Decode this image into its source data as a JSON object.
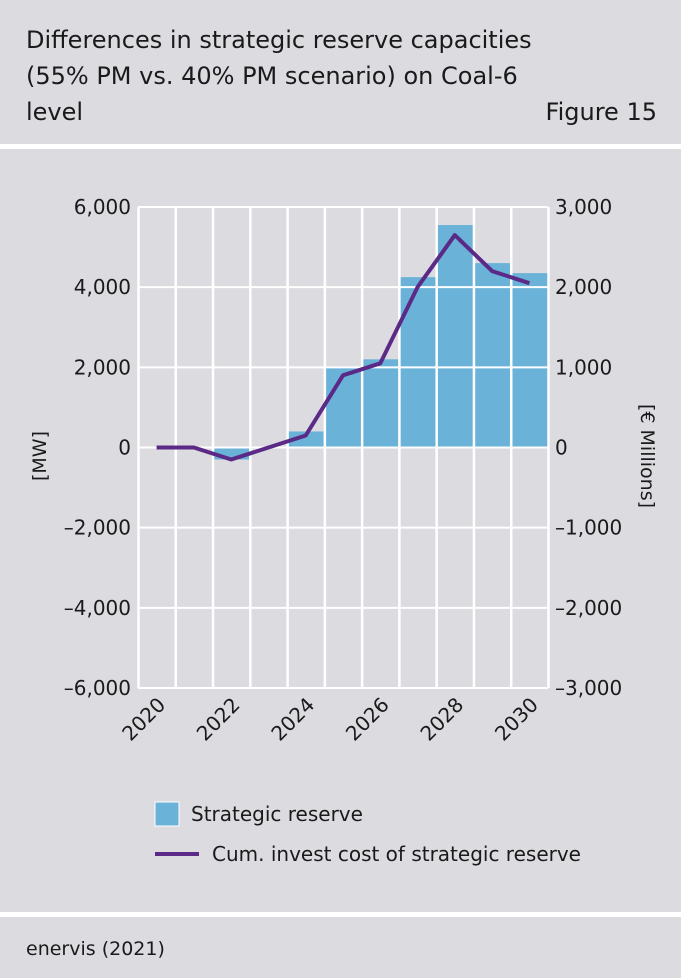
{
  "header": {
    "title": "Differences in strategic reserve capacities (55% PM vs. 40% PM scenario) on Coal-6 level",
    "figure_label": "Figure 15"
  },
  "footer": {
    "source": "enervis (2021)"
  },
  "colors": {
    "background": "#dcdbe0",
    "bar": "#6ab2d8",
    "line": "#5a2a86",
    "grid": "#ffffff"
  },
  "chart_data": {
    "type": "bar",
    "title": "",
    "x": [
      2020,
      2021,
      2022,
      2023,
      2024,
      2025,
      2026,
      2027,
      2028,
      2029,
      2030
    ],
    "xtick_labels": [
      "2020",
      "2022",
      "2024",
      "2026",
      "2028",
      "2030"
    ],
    "ylabel": "[MW]",
    "y2label": "[€ Millions]",
    "ylim": [
      -6000,
      6000
    ],
    "y2lim": [
      -3000,
      3000
    ],
    "yticks": [
      "6,000",
      "4,000",
      "2,000",
      "0",
      "–2,000",
      "–4,000",
      "–6,000"
    ],
    "y2ticks": [
      "3,000",
      "2,000",
      "1,000",
      "0",
      "–1,000",
      "–2,000",
      "–3,000"
    ],
    "grid": true,
    "legend_position": "bottom",
    "series": [
      {
        "name": "Strategic reserve",
        "type": "bar",
        "axis": "left",
        "values": [
          0,
          0,
          -300,
          0,
          400,
          2000,
          2200,
          4250,
          5550,
          4600,
          4350
        ]
      },
      {
        "name": "Cum. invest cost of strategic reserve",
        "type": "line",
        "axis": "right",
        "values": [
          0,
          0,
          -150,
          0,
          150,
          900,
          1050,
          2000,
          2650,
          2200,
          2050
        ]
      }
    ]
  }
}
